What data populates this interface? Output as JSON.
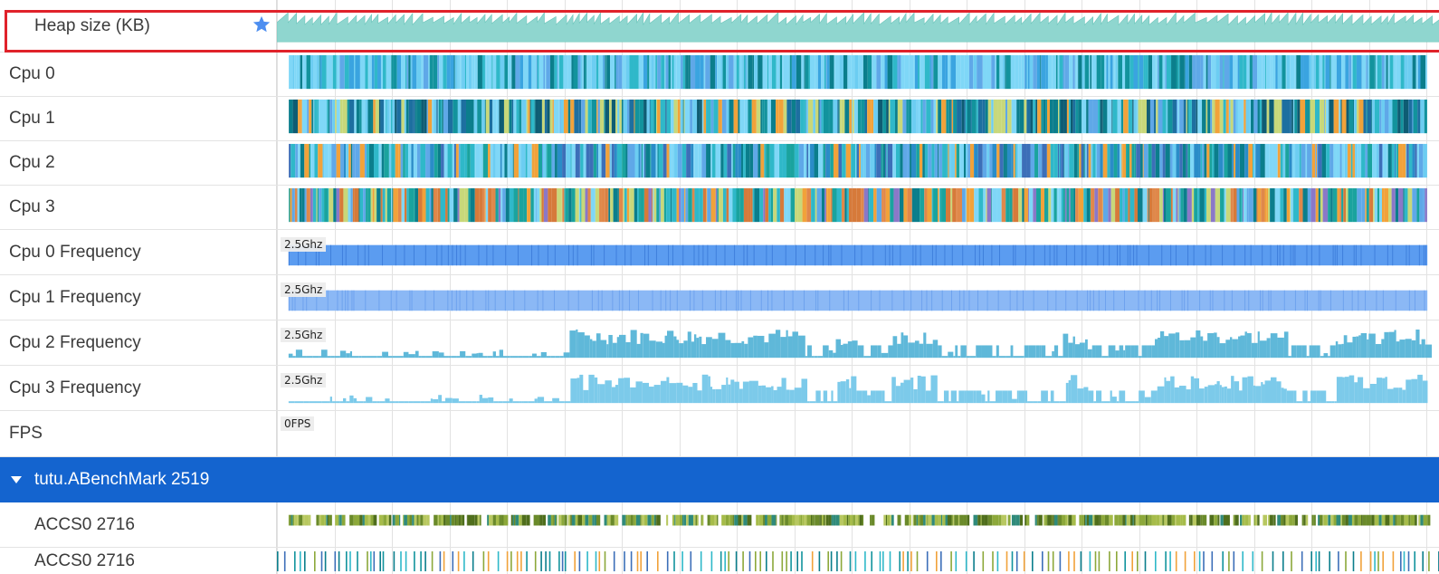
{
  "tracks": [
    {
      "id": "heap",
      "label": "Heap size (KB)",
      "starred": true,
      "highlighted": true
    },
    {
      "id": "cpu0",
      "label": "Cpu 0"
    },
    {
      "id": "cpu1",
      "label": "Cpu 1"
    },
    {
      "id": "cpu2",
      "label": "Cpu 2"
    },
    {
      "id": "cpu3",
      "label": "Cpu 3"
    },
    {
      "id": "cpu0freq",
      "label": "Cpu 0 Frequency",
      "max_value": "2.5Ghz"
    },
    {
      "id": "cpu1freq",
      "label": "Cpu 1 Frequency",
      "max_value": "2.5Ghz"
    },
    {
      "id": "cpu2freq",
      "label": "Cpu 2 Frequency",
      "max_value": "2.5Ghz"
    },
    {
      "id": "cpu3freq",
      "label": "Cpu 3 Frequency",
      "max_value": "2.5Ghz"
    },
    {
      "id": "fps",
      "label": "FPS",
      "value": "0FPS"
    }
  ],
  "process": {
    "label": "tutu.ABenchMark 2519",
    "expanded": true
  },
  "threads": [
    {
      "label": "ACCS0 2716"
    },
    {
      "label": "ACCS0 2716"
    }
  ],
  "colors": {
    "heap": "#8fd6cf",
    "freq_dark": "#5b9cf0",
    "freq_light": "#8bb8f5",
    "freq_teal": "#5fb8d9",
    "freq_sky": "#7ccaea",
    "process_bg": "#1464cf",
    "highlight": "#e0222a",
    "star": "#4d8ef0"
  },
  "icons": {
    "star": "star-icon",
    "expand": "caret-down-icon"
  }
}
